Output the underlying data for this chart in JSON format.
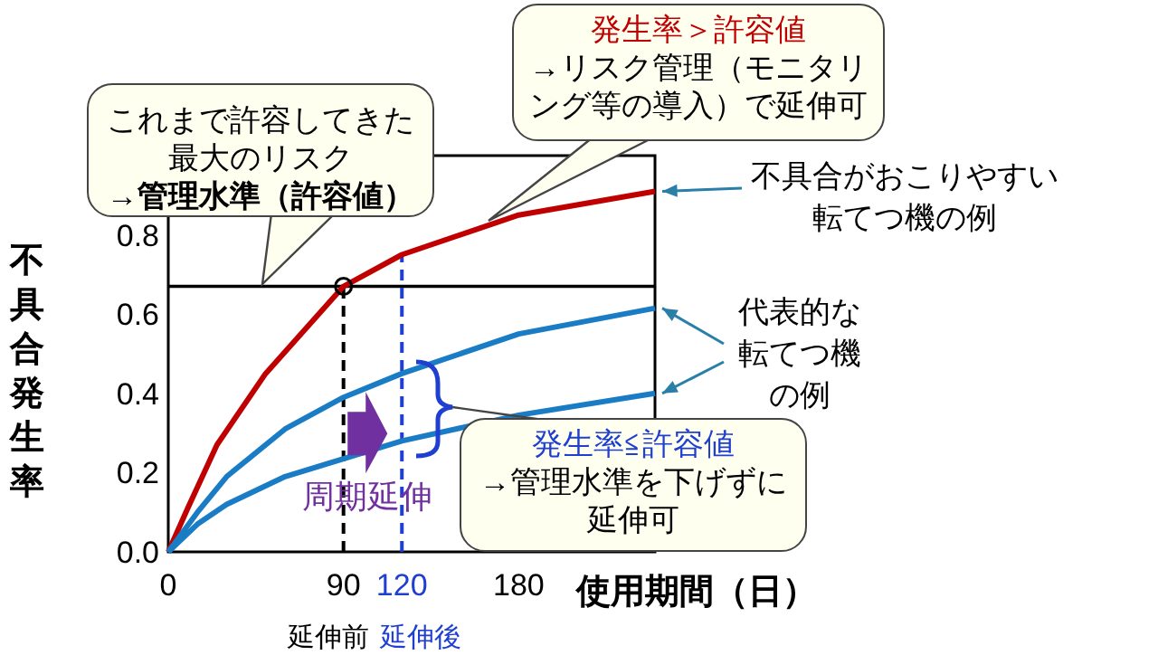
{
  "chart_data": {
    "type": "line",
    "xlabel": "使用期間（日）",
    "ylabel": "不具合発生率",
    "xlim": [
      0,
      250
    ],
    "ylim": [
      0,
      1.0
    ],
    "xticks": [
      0,
      90,
      120,
      180
    ],
    "yticks": [
      {
        "value": 0,
        "label": "0.0"
      },
      {
        "value": 0.2,
        "label": "0.2"
      },
      {
        "value": 0.4,
        "label": "0.4"
      },
      {
        "value": 0.6,
        "label": "0.6"
      },
      {
        "value": 0.8,
        "label": "0.8"
      }
    ],
    "grid": false,
    "line_style": "solid",
    "series": [
      {
        "name": "不具合がおこりやすい転てつ機の例",
        "color": "#c00000",
        "x": [
          0,
          10,
          25,
          50,
          90,
          120,
          180,
          250
        ],
        "values": [
          0,
          0.11,
          0.27,
          0.45,
          0.67,
          0.75,
          0.85,
          0.91
        ]
      },
      {
        "name": "代表的な転てつ機の例",
        "color": "#1a7cc4",
        "x": [
          0,
          15,
          30,
          60,
          90,
          120,
          180,
          250
        ],
        "values": [
          0,
          0.1,
          0.19,
          0.31,
          0.39,
          0.45,
          0.55,
          0.615
        ]
      },
      {
        "color": "#1a7cc4",
        "x": [
          0,
          15,
          30,
          60,
          90,
          120,
          180,
          250
        ],
        "values": [
          0,
          0.07,
          0.12,
          0.19,
          0.235,
          0.28,
          0.345,
          0.4
        ]
      },
      {
        "type": "scatter",
        "marker": "circle",
        "color": "#000000",
        "x": [
          90
        ],
        "values": [
          0.67
        ]
      }
    ],
    "ref_lines": [
      {
        "axis": "y",
        "value": 0.67,
        "label": "これまで許容してきた最大のリスク→**管理水準（許容値）**",
        "color": "#000000",
        "line_style": "solid"
      },
      {
        "axis": "x",
        "value": 90,
        "label": "延伸前",
        "color": "#000000",
        "line_style": "dashed"
      },
      {
        "axis": "x",
        "value": 120,
        "label": "延伸後",
        "color": "#1f3fd0",
        "line_style": "dashed"
      }
    ],
    "annotations": [
      "発生率＞許容値",
      "→リスク管理（モニタリング等の導入）で延伸可",
      "発生率≦許容値",
      "→管理水準を下げずに延伸可",
      {
        "text": "周期延伸",
        "x": 120,
        "y": 0.28
      }
    ]
  }
}
